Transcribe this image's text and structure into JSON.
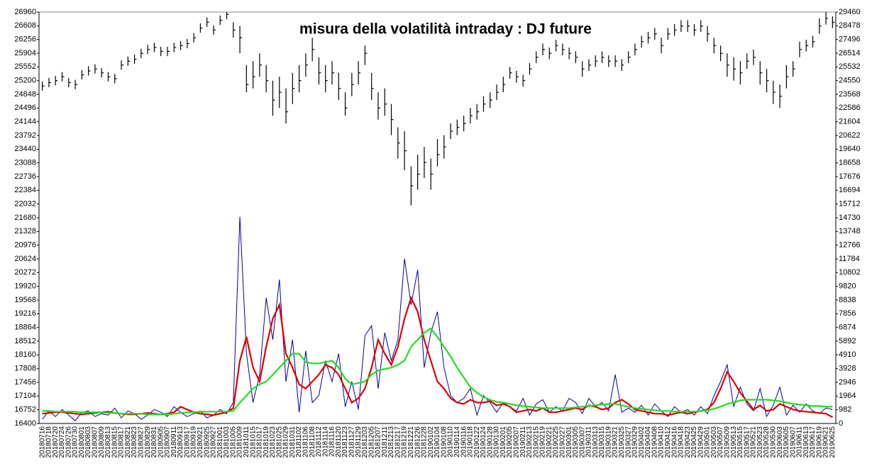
{
  "chart_data": {
    "type": "ohlc",
    "title": "misura della volatilità intraday : DJ  future",
    "categories": [
      "20180716",
      "20180718",
      "20180720",
      "20180724",
      "20180726",
      "20180730",
      "20180801",
      "20180803",
      "20180807",
      "20180809",
      "20180813",
      "20180815",
      "20180817",
      "20180821",
      "20180823",
      "20180827",
      "20180829",
      "20180831",
      "20180905",
      "20180907",
      "20180911",
      "20180913",
      "20180917",
      "20180919",
      "20180921",
      "20180925",
      "20180927",
      "20181001",
      "20181003",
      "20181005",
      "20181009",
      "20181011",
      "20181015",
      "20181017",
      "20181019",
      "20181023",
      "20181025",
      "20181029",
      "20181031",
      "20181102",
      "20181106",
      "20181108",
      "20181112",
      "20181114",
      "20181116",
      "20181120",
      "20181123",
      "20181127",
      "20181129",
      "20181203",
      "20181205",
      "20181207",
      "20181211",
      "20181213",
      "20181217",
      "20181219",
      "20181221",
      "20181226",
      "20181228",
      "20190102",
      "20190104",
      "20190108",
      "20190110",
      "20190114",
      "20190116",
      "20190118",
      "20190122",
      "20190124",
      "20190128",
      "20190130",
      "20190201",
      "20190205",
      "20190207",
      "20190211",
      "20190213",
      "20190215",
      "20190219",
      "20190221",
      "20190225",
      "20190227",
      "20190301",
      "20190305",
      "20190307",
      "20190311",
      "20190313",
      "20190315",
      "20190319",
      "20190321",
      "20190325",
      "20190327",
      "20190329",
      "20190402",
      "20190404",
      "20190408",
      "20190410",
      "20190412",
      "20190416",
      "20190418",
      "20190423",
      "20190425",
      "20190429",
      "20190501",
      "20190503",
      "20190507",
      "20190509",
      "20190513",
      "20190515",
      "20190517",
      "20190521",
      "20190523",
      "20190528",
      "20190530",
      "20190603",
      "20190605",
      "20190607",
      "20190611",
      "20190613",
      "20190617",
      "20190619",
      "20190621",
      "20190625"
    ],
    "ohlc": {
      "color": "#000000",
      "high": [
        25180,
        25270,
        25320,
        25420,
        25270,
        25220,
        25470,
        25570,
        25620,
        25520,
        25420,
        25370,
        25720,
        25820,
        25870,
        26020,
        26120,
        26170,
        26070,
        26070,
        26170,
        26220,
        26270,
        26420,
        26670,
        26820,
        26620,
        26870,
        26960,
        26700,
        26600,
        25600,
        25700,
        25900,
        25600,
        25200,
        25300,
        25000,
        25400,
        25600,
        25900,
        26300,
        25800,
        25600,
        25700,
        25400,
        24900,
        25400,
        25700,
        26100,
        25400,
        24900,
        25000,
        24600,
        24000,
        23900,
        23000,
        23300,
        23500,
        23200,
        23700,
        23800,
        24100,
        24200,
        24300,
        24500,
        24600,
        24800,
        24900,
        25100,
        25300,
        25550,
        25450,
        25350,
        25650,
        25950,
        26150,
        26050,
        26250,
        26150,
        26050,
        25950,
        25700,
        25750,
        25850,
        25950,
        25850,
        25850,
        25750,
        25950,
        26150,
        26350,
        26450,
        26550,
        26300,
        26550,
        26650,
        26750,
        26750,
        26650,
        26750,
        26600,
        26300,
        26100,
        25900,
        25800,
        25700,
        25900,
        26000,
        25700,
        25500,
        25200,
        25100,
        25600,
        25700,
        26200,
        26250,
        26350,
        26800,
        26960,
        26850
      ],
      "low": [
        24940,
        25030,
        25080,
        25180,
        25030,
        24980,
        25230,
        25330,
        25380,
        25280,
        25180,
        25130,
        25480,
        25580,
        25630,
        25780,
        25880,
        25930,
        25830,
        25830,
        25930,
        25980,
        26030,
        26180,
        26430,
        26580,
        26380,
        26630,
        26780,
        26300,
        25900,
        24900,
        25000,
        25300,
        24900,
        24300,
        24500,
        24100,
        24600,
        24900,
        25300,
        25700,
        25100,
        24900,
        25100,
        24700,
        24300,
        24800,
        25100,
        25600,
        24700,
        24200,
        24300,
        23800,
        23200,
        22900,
        22000,
        22400,
        22700,
        22400,
        23000,
        23200,
        23700,
        23800,
        23900,
        24100,
        24200,
        24400,
        24500,
        24700,
        24900,
        25250,
        25150,
        25050,
        25350,
        25650,
        25850,
        25750,
        25950,
        25850,
        25750,
        25650,
        25300,
        25450,
        25550,
        25650,
        25550,
        25550,
        25450,
        25650,
        25850,
        26050,
        26150,
        26250,
        25900,
        26250,
        26350,
        26450,
        26450,
        26350,
        26450,
        26200,
        25900,
        25700,
        25300,
        25200,
        25100,
        25500,
        25600,
        25100,
        24900,
        24600,
        24500,
        25000,
        25300,
        25800,
        25950,
        26050,
        26400,
        26640,
        26550
      ],
      "close": [
        25060,
        25150,
        25200,
        25300,
        25150,
        25100,
        25350,
        25450,
        25500,
        25400,
        25300,
        25250,
        25600,
        25700,
        25750,
        25900,
        26000,
        26050,
        25950,
        25950,
        26050,
        26100,
        26150,
        26300,
        26550,
        26700,
        26500,
        26750,
        26900,
        26500,
        26300,
        25100,
        25300,
        25600,
        25200,
        24700,
        24900,
        24400,
        25000,
        25200,
        25600,
        26000,
        25400,
        25200,
        25400,
        25000,
        24500,
        25100,
        25400,
        25900,
        25000,
        24500,
        24600,
        24200,
        23600,
        23400,
        22500,
        22800,
        23100,
        22800,
        23300,
        23500,
        23900,
        24000,
        24100,
        24300,
        24400,
        24600,
        24700,
        24900,
        25100,
        25400,
        25300,
        25200,
        25500,
        25800,
        26000,
        25900,
        26100,
        26000,
        25900,
        25800,
        25500,
        25600,
        25700,
        25800,
        25700,
        25700,
        25600,
        25800,
        26000,
        26200,
        26300,
        26400,
        26100,
        26400,
        26500,
        26600,
        26600,
        26500,
        26600,
        26400,
        26100,
        25900,
        25600,
        25500,
        25400,
        25700,
        25800,
        25400,
        25200,
        24900,
        24800,
        25300,
        25500,
        26000,
        26100,
        26200,
        26600,
        26800,
        26700
      ]
    },
    "series": [
      {
        "color": "#0000a0",
        "axis": "y2",
        "values": [
          300,
          900,
          500,
          1000,
          600,
          200,
          800,
          900,
          500,
          700,
          600,
          1100,
          400,
          900,
          700,
          300,
          600,
          1000,
          800,
          500,
          1200,
          800,
          500,
          700,
          900,
          400,
          600,
          1000,
          700,
          1500,
          14800,
          5000,
          1500,
          3500,
          9000,
          6000,
          10300,
          3000,
          6000,
          800,
          5200,
          1500,
          2000,
          4500,
          3000,
          5000,
          1200,
          3000,
          1000,
          6300,
          7000,
          2500,
          6500,
          4500,
          6000,
          11800,
          8500,
          11000,
          4000,
          6500,
          8000,
          4000,
          2000,
          1500,
          1800,
          2500,
          600,
          2000,
          1500,
          800,
          1500,
          1200,
          900,
          1800,
          600,
          1400,
          1700,
          800,
          1200,
          900,
          1800,
          1500,
          700,
          1800,
          1200,
          1500,
          900,
          3500,
          800,
          1100,
          800,
          1300,
          600,
          1400,
          900,
          500,
          1200,
          800,
          1000,
          600,
          1200,
          700,
          2000,
          3000,
          4200,
          1200,
          2600,
          1400,
          900,
          2500,
          500,
          1300,
          2600,
          600,
          1300,
          800,
          1400,
          900,
          700,
          1100,
          1000
        ]
      },
      {
        "color": "#e00000",
        "axis": "y2",
        "values": [
          700,
          750,
          800,
          800,
          750,
          700,
          650,
          700,
          750,
          800,
          850,
          750,
          700,
          650,
          650,
          700,
          750,
          700,
          650,
          700,
          800,
          1200,
          1000,
          800,
          700,
          650,
          600,
          700,
          800,
          1100,
          4500,
          6200,
          4000,
          3000,
          5500,
          7500,
          8500,
          5000,
          4000,
          2800,
          2500,
          3000,
          3500,
          4200,
          4000,
          3500,
          2500,
          1500,
          1800,
          2500,
          4000,
          6000,
          5000,
          4200,
          5500,
          7500,
          9000,
          8000,
          6000,
          4500,
          3000,
          2500,
          1800,
          1500,
          1400,
          1700,
          1500,
          1500,
          1600,
          1300,
          1400,
          1200,
          800,
          900,
          1000,
          900,
          1100,
          800,
          800,
          900,
          1000,
          1100,
          1000,
          1300,
          1200,
          1000,
          1100,
          1500,
          1700,
          1400,
          1000,
          900,
          800,
          700,
          700,
          600,
          700,
          800,
          700,
          800,
          900,
          1000,
          1500,
          2500,
          3700,
          3000,
          2200,
          1600,
          1000,
          1300,
          900,
          1000,
          1400,
          1200,
          1000,
          900,
          850,
          800,
          750,
          700,
          450
        ]
      },
      {
        "color": "#22dd22",
        "axis": "y2",
        "values": [
          900,
          900,
          850,
          850,
          850,
          850,
          800,
          800,
          800,
          800,
          750,
          750,
          700,
          700,
          700,
          700,
          650,
          650,
          650,
          650,
          700,
          750,
          800,
          800,
          850,
          850,
          850,
          850,
          850,
          900,
          1500,
          2000,
          2500,
          2800,
          3000,
          3500,
          4000,
          4500,
          5000,
          5000,
          4400,
          4300,
          4300,
          4400,
          4500,
          4000,
          3200,
          2800,
          2900,
          3000,
          3500,
          3800,
          3900,
          4000,
          4200,
          4500,
          5500,
          6000,
          6500,
          6800,
          6200,
          5500,
          4800,
          4000,
          3300,
          2600,
          2200,
          1900,
          1700,
          1550,
          1500,
          1400,
          1300,
          1250,
          1200,
          1150,
          1100,
          1100,
          1100,
          1100,
          1100,
          1150,
          1200,
          1250,
          1300,
          1350,
          1400,
          1400,
          1300,
          1200,
          1100,
          1050,
          1000,
          950,
          900,
          900,
          850,
          850,
          850,
          850,
          900,
          950,
          1050,
          1200,
          1400,
          1500,
          1650,
          1700,
          1700,
          1700,
          1700,
          1650,
          1600,
          1500,
          1400,
          1350,
          1300,
          1250,
          1250,
          1200,
          1200
        ]
      }
    ],
    "ylim": [
      16400,
      26960
    ],
    "yticks": [
      26960,
      26608,
      26256,
      25904,
      25552,
      25200,
      24848,
      24496,
      24144,
      23792,
      23440,
      23088,
      22736,
      22384,
      22032,
      21680,
      21328,
      20976,
      20624,
      20272,
      19920,
      19568,
      19216,
      18864,
      18512,
      18160,
      17808,
      17456,
      17104,
      16752,
      16400
    ],
    "y2lim": [
      0,
      29460
    ],
    "y2ticks": [
      29460,
      28478,
      27496,
      26514,
      25532,
      24550,
      23568,
      22586,
      21604,
      20622,
      19640,
      18658,
      17676,
      16694,
      15712,
      14730,
      13748,
      12766,
      11784,
      10802,
      9820,
      8838,
      7856,
      6874,
      5892,
      4910,
      3928,
      2946,
      1964,
      982,
      0
    ]
  }
}
